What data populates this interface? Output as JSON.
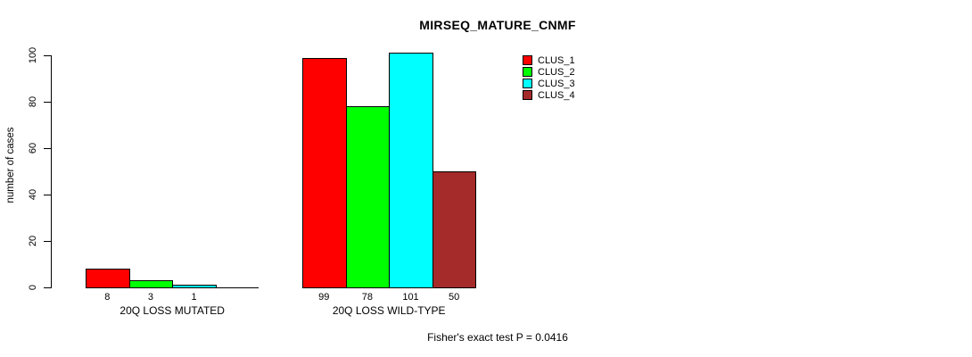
{
  "figure": {
    "title": "MIRSEQ_MATURE_CNMF",
    "footer": "Fisher's exact test P = 0.0416"
  },
  "chart_data": {
    "type": "bar",
    "title": "MIRSEQ_MATURE_CNMF",
    "ylabel": "number of cases",
    "xlabel": "",
    "ylim": [
      0,
      100
    ],
    "yticks": [
      "0",
      "20",
      "40",
      "60",
      "80",
      "100"
    ],
    "categories": [
      "20Q LOSS MUTATED",
      "20Q LOSS WILD-TYPE"
    ],
    "series": [
      {
        "name": "CLUS_1",
        "color": "#ff0000",
        "values": [
          8,
          99
        ]
      },
      {
        "name": "CLUS_2",
        "color": "#00ff00",
        "values": [
          3,
          78
        ]
      },
      {
        "name": "CLUS_3",
        "color": "#00ffff",
        "values": [
          1,
          101
        ]
      },
      {
        "name": "CLUS_4",
        "color": "#a52a2a",
        "values": [
          0,
          50
        ]
      }
    ],
    "bar_labels": [
      [
        "8",
        "3",
        "1",
        ""
      ],
      [
        "99",
        "78",
        "101",
        "50"
      ]
    ],
    "annotation": "Fisher's exact test P = 0.0416",
    "legend_position": "top-right",
    "legend_entries": [
      "CLUS_1",
      "CLUS_2",
      "CLUS_3",
      "CLUS_4"
    ],
    "grid": false
  }
}
